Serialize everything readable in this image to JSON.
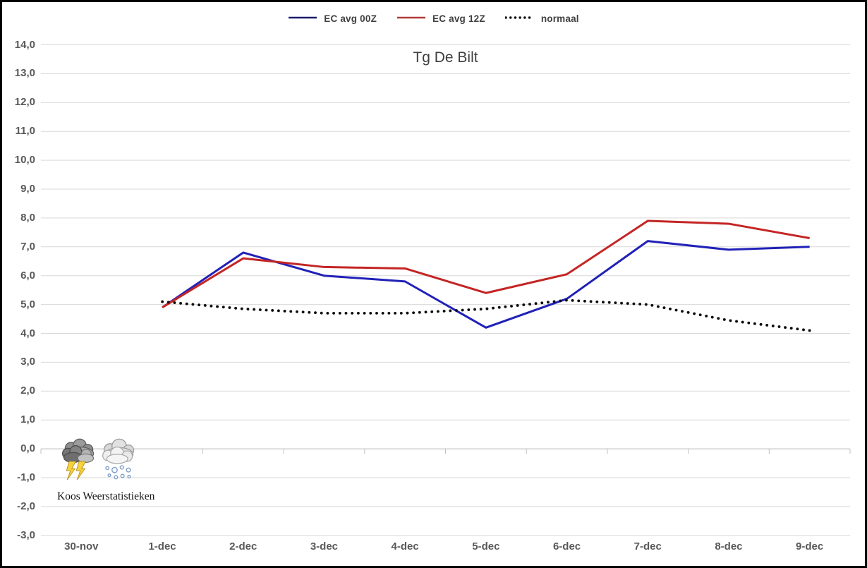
{
  "chart_data": {
    "type": "line",
    "title": "Tg De Bilt",
    "categories": [
      "30-nov",
      "1-dec",
      "2-dec",
      "3-dec",
      "4-dec",
      "5-dec",
      "6-dec",
      "7-dec",
      "8-dec",
      "9-dec"
    ],
    "series": [
      {
        "name": "EC avg 00Z",
        "style": "solid",
        "color": "#2121b8",
        "legend_color": "#1b1b6e",
        "values": [
          null,
          4.9,
          6.8,
          6.0,
          5.8,
          4.2,
          5.2,
          7.2,
          6.9,
          7.0
        ]
      },
      {
        "name": "EC avg 12Z",
        "style": "solid",
        "color": "#c42525",
        "legend_color": "#b23a3a",
        "values": [
          null,
          4.9,
          6.6,
          6.3,
          6.25,
          5.4,
          6.05,
          7.9,
          7.8,
          7.3
        ]
      },
      {
        "name": "normaal",
        "style": "dotted",
        "color": "#0d0d0d",
        "legend_color": "#0d0d0d",
        "values": [
          null,
          5.1,
          4.85,
          4.7,
          4.7,
          4.85,
          5.15,
          5.0,
          4.45,
          4.1
        ]
      }
    ],
    "ylim": [
      -3,
      14
    ],
    "ytick_step": 1,
    "ytick_labels": [
      "14,0",
      "13,0",
      "12,0",
      "11,0",
      "10,0",
      "9,0",
      "8,0",
      "7,0",
      "6,0",
      "5,0",
      "4,0",
      "3,0",
      "2,0",
      "1,0",
      "0,0",
      "-1,0",
      "-2,0",
      "-3,0"
    ],
    "grid": true,
    "legend_position": "top",
    "axis_cross_value": 0
  },
  "watermark": {
    "label": "Koos Weerstatistieken",
    "icons": [
      "storm-cloud-lightning-icon",
      "cloud-snow-icon"
    ]
  },
  "colors": {
    "background": "#ffffff",
    "border": "#000000",
    "gridline": "#d9d9d9",
    "axis_line": "#c0c0c0",
    "tick_label": "#595959",
    "legend_text": "#404040",
    "title_text": "#404040",
    "lightning": "#f6d23c",
    "snow_dot": "#7e9fc4"
  }
}
